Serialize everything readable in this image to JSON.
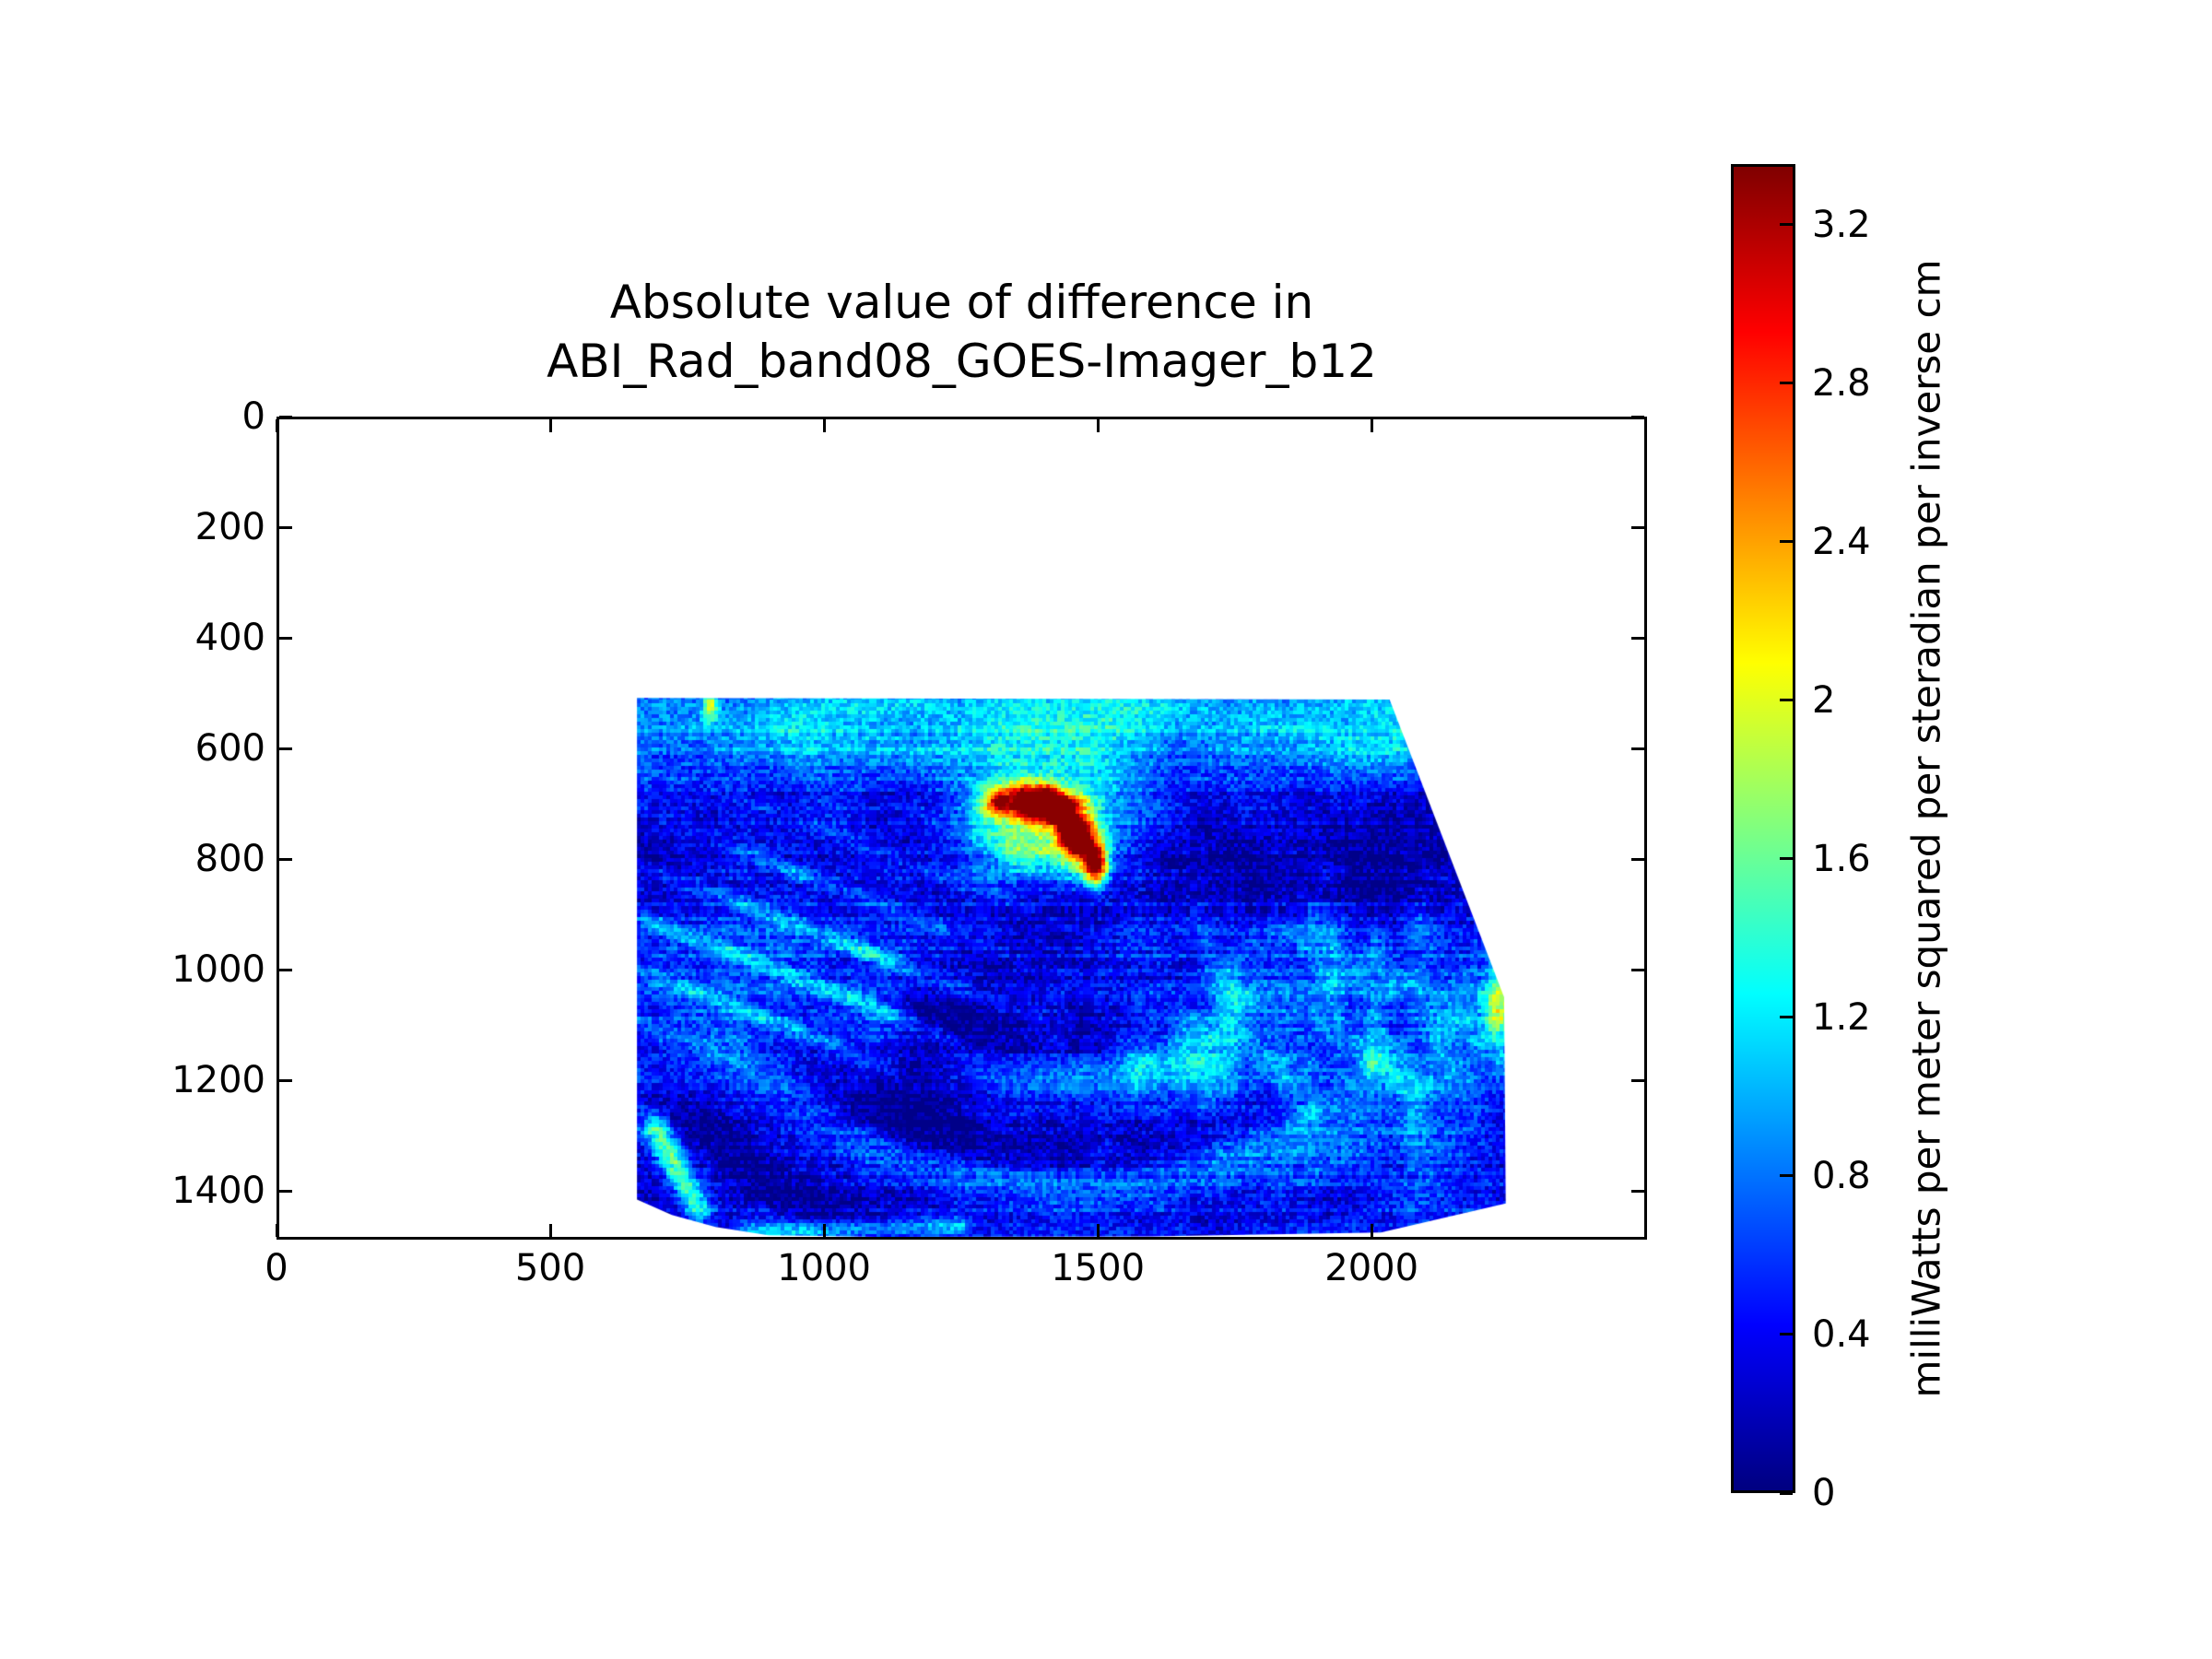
{
  "figure": {
    "title_line1": "Absolute value of difference in",
    "title_line2": "ABI_Rad_band08_GOES-Imager_b12",
    "background": "#ffffff"
  },
  "chart_data": {
    "type": "heatmap",
    "title": "Absolute value of difference in ABI_Rad_band08_GOES-Imager_b12",
    "xlabel": "",
    "ylabel": "",
    "xlim": [
      0,
      2503
    ],
    "ylim": [
      1488,
      0
    ],
    "y_axis_inverted": true,
    "grid": false,
    "x_ticks": [
      0,
      500,
      1000,
      1500,
      2000
    ],
    "x_tick_labels": [
      "0",
      "500",
      "1000",
      "1500",
      "2000"
    ],
    "y_ticks": [
      0,
      200,
      400,
      600,
      800,
      1000,
      1200,
      1400
    ],
    "y_tick_labels": [
      "0",
      "200",
      "400",
      "600",
      "800",
      "1000",
      "1200",
      "1400"
    ],
    "colormap": "jet",
    "colorbar": {
      "label": "milliWatts per meter squared per steradian per inverse cm",
      "ticks": [
        0,
        0.4,
        0.8,
        1.2,
        1.6,
        2,
        2.4,
        2.8,
        3.2
      ],
      "tick_labels": [
        "0",
        "0.4",
        "0.8",
        "1.2",
        "1.6",
        "2",
        "2.4",
        "2.8",
        "3.2"
      ],
      "vmin": 0,
      "vmax": 3.353,
      "gradient_stops": [
        {
          "pos": 0,
          "color": "#000080"
        },
        {
          "pos": 12.5,
          "color": "#0000ff"
        },
        {
          "pos": 37.5,
          "color": "#00ffff"
        },
        {
          "pos": 62.5,
          "color": "#ffff00"
        },
        {
          "pos": 87.5,
          "color": "#ff0000"
        },
        {
          "pos": 100,
          "color": "#800000"
        }
      ]
    },
    "swath_polygon_xy": [
      [
        656,
        507
      ],
      [
        2036,
        510
      ],
      [
        2246,
        1052
      ],
      [
        2249,
        1427
      ],
      [
        2020,
        1480
      ],
      [
        1600,
        1487
      ],
      [
        1100,
        1488
      ],
      [
        897,
        1485
      ],
      [
        800,
        1470
      ],
      [
        720,
        1448
      ],
      [
        656,
        1420
      ]
    ],
    "background_value_range": [
      0.2,
      0.9
    ],
    "features": [
      {
        "kind": "band_top",
        "y_center": 565,
        "sigma": 110,
        "amp": 0.85,
        "label": "bright cyan band along top of swath"
      },
      {
        "kind": "gauss",
        "cx": 1950,
        "cy": 770,
        "sx": 320,
        "sy": 200,
        "amp": -0.4,
        "label": "dark navy region upper right"
      },
      {
        "kind": "gauss",
        "cx": 950,
        "cy": 665,
        "sx": 280,
        "sy": 95,
        "amp": -0.3,
        "label": "dark band left of hotspot"
      },
      {
        "kind": "streaks",
        "cx": 960,
        "cy": 960,
        "sx": 300,
        "sy": 190,
        "amp": 1.15,
        "label": "yellow-green diagonal streaks left-center"
      },
      {
        "kind": "hotspot",
        "cx": 1360,
        "cy": 695,
        "sx": 60,
        "sy": 26,
        "amp": 2.9,
        "label": "red maximum-difference cluster ~3.2"
      },
      {
        "kind": "hotspot",
        "cx": 1425,
        "cy": 705,
        "sx": 45,
        "sy": 30,
        "amp": 3.0
      },
      {
        "kind": "hotspot",
        "cx": 1460,
        "cy": 765,
        "sx": 30,
        "sy": 45,
        "amp": 2.6
      },
      {
        "kind": "hotspot",
        "cx": 1497,
        "cy": 812,
        "sx": 22,
        "sy": 38,
        "amp": 2.5
      },
      {
        "kind": "hotspot",
        "cx": 1400,
        "cy": 745,
        "sx": 140,
        "sy": 95,
        "amp": 1.1,
        "label": "yellow halo around hotspot"
      },
      {
        "kind": "speckle",
        "cx": 1900,
        "cy": 1120,
        "sx": 430,
        "sy": 290,
        "amp": 1.0,
        "label": "cyan speckled cloud field right half"
      },
      {
        "kind": "gauss",
        "cx": 2235,
        "cy": 1075,
        "sx": 28,
        "sy": 55,
        "amp": 1.35,
        "label": "green blob at right edge"
      },
      {
        "kind": "swirl",
        "cx": 1450,
        "cy": 520,
        "freq": 0.03,
        "mask_cx": 1350,
        "mask_cy": 1300,
        "mask_sx": 620,
        "mask_sy": 270,
        "amp_pos": 0.38,
        "amp_neg": 0.3,
        "label": "curved arc bands bottom center"
      },
      {
        "kind": "gauss",
        "cx": 1330,
        "cy": 1000,
        "sx": 190,
        "sy": 150,
        "amp": -0.5,
        "label": "dark kidney below hotspot"
      },
      {
        "kind": "gauss",
        "cx": 1240,
        "cy": 1190,
        "sx": 150,
        "sy": 110,
        "amp": -0.3
      },
      {
        "kind": "gauss",
        "cx": 820,
        "cy": 1330,
        "sx": 210,
        "sy": 150,
        "amp": -0.32,
        "label": "dark bottom-left region"
      },
      {
        "kind": "streak_line",
        "x1": 690,
        "y1": 1290,
        "x2": 770,
        "y2": 1440,
        "w": 25,
        "amp": 1.2,
        "label": "yellow streak near lower-left edge"
      },
      {
        "kind": "streak_line",
        "x1": 860,
        "y1": 1480,
        "x2": 1250,
        "y2": 1468,
        "w": 18,
        "amp": 0.6,
        "label": "cyan strip along bottom edge"
      },
      {
        "kind": "gauss",
        "cx": 790,
        "cy": 520,
        "sx": 12,
        "sy": 28,
        "amp": 1.3,
        "label": "small green blip at top edge"
      }
    ]
  }
}
